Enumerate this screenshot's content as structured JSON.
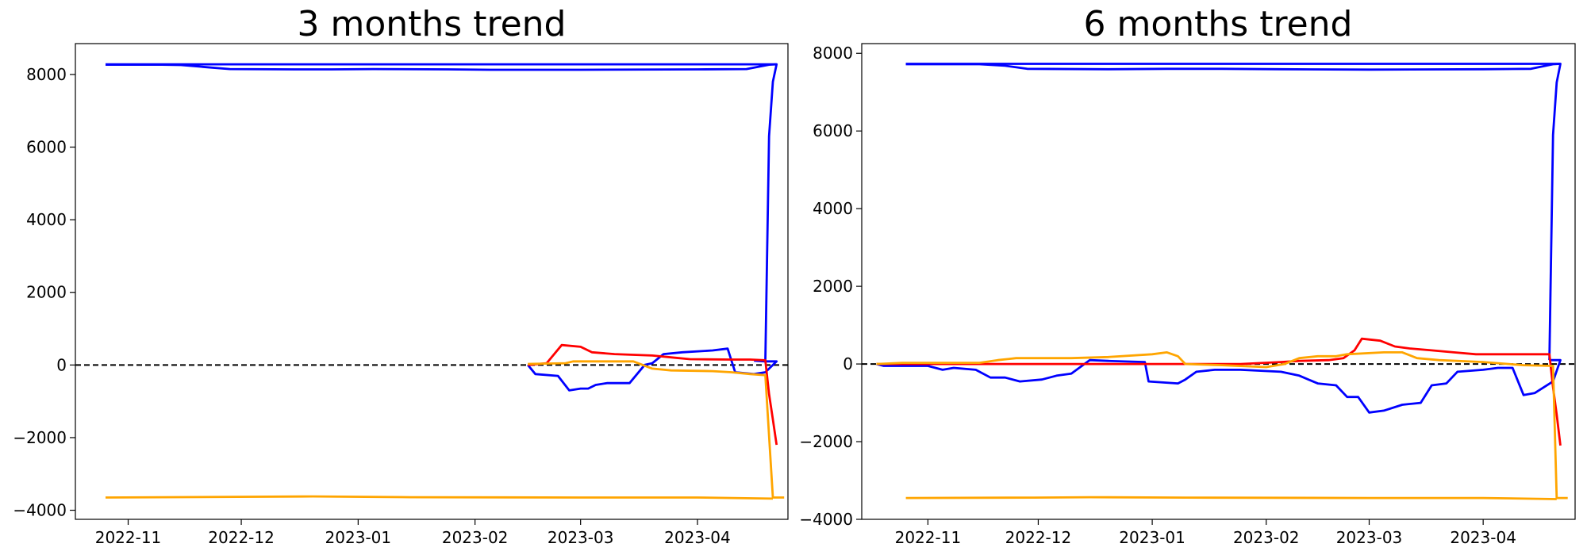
{
  "chart_data": [
    {
      "type": "line",
      "title": "3 months trend",
      "xlabel": "",
      "ylabel": "",
      "x_range": [
        "2022-10-18",
        "2023-04-25"
      ],
      "ylim": [
        -4250,
        8850
      ],
      "x_ticks": [
        "2022-11",
        "2022-12",
        "2023-01",
        "2023-02",
        "2023-03",
        "2023-04"
      ],
      "x_tick_dates": [
        "2022-11-01",
        "2022-12-01",
        "2023-01-01",
        "2023-02-01",
        "2023-03-01",
        "2023-04-01"
      ],
      "y_ticks": [
        -4000,
        -2000,
        0,
        2000,
        4000,
        6000,
        8000
      ],
      "y_tick_labels": [
        "−4000",
        "−2000",
        "0",
        "2000",
        "4000",
        "6000",
        "8000"
      ],
      "grid": false,
      "reference_line": {
        "y": 0,
        "style": "dashed",
        "color": "#000000"
      },
      "series": [
        {
          "color": "#0000ff",
          "points": [
            [
              "2022-10-26",
              8270
            ],
            [
              "2022-11-10",
              8270
            ],
            [
              "2022-11-15",
              8260
            ],
            [
              "2022-11-22",
              8200
            ],
            [
              "2022-11-28",
              8150
            ],
            [
              "2022-12-15",
              8140
            ],
            [
              "2022-12-25",
              8140
            ],
            [
              "2023-01-05",
              8150
            ],
            [
              "2023-01-25",
              8140
            ],
            [
              "2023-02-05",
              8130
            ],
            [
              "2023-03-01",
              8130
            ],
            [
              "2023-04-01",
              8140
            ],
            [
              "2023-04-14",
              8150
            ],
            [
              "2023-04-20",
              8270
            ],
            [
              "2023-04-22",
              8280
            ],
            [
              "2023-04-21",
              7800
            ],
            [
              "2023-04-20",
              6300
            ],
            [
              "2023-04-19",
              100
            ],
            [
              "2023-04-16",
              120
            ]
          ]
        },
        {
          "color": "#0000ff",
          "points": [
            [
              "2022-10-26",
              8280
            ],
            [
              "2023-04-22",
              8280
            ]
          ]
        },
        {
          "color": "#0000ff",
          "points": [
            [
              "2023-02-15",
              0
            ],
            [
              "2023-02-17",
              -250
            ],
            [
              "2023-02-23",
              -300
            ],
            [
              "2023-02-26",
              -700
            ],
            [
              "2023-03-01",
              -650
            ],
            [
              "2023-03-03",
              -650
            ],
            [
              "2023-03-05",
              -550
            ],
            [
              "2023-03-08",
              -500
            ],
            [
              "2023-03-14",
              -500
            ],
            [
              "2023-03-18",
              0
            ],
            [
              "2023-03-20",
              50
            ],
            [
              "2023-03-23",
              300
            ],
            [
              "2023-03-28",
              350
            ],
            [
              "2023-04-05",
              400
            ],
            [
              "2023-04-09",
              450
            ],
            [
              "2023-04-11",
              -200
            ],
            [
              "2023-04-16",
              -250
            ],
            [
              "2023-04-19",
              -200
            ],
            [
              "2023-04-22",
              100
            ],
            [
              "2023-04-19",
              100
            ]
          ]
        },
        {
          "color": "#ff0000",
          "points": [
            [
              "2023-02-15",
              0
            ],
            [
              "2023-02-20",
              50
            ],
            [
              "2023-02-24",
              550
            ],
            [
              "2023-03-01",
              500
            ],
            [
              "2023-03-04",
              350
            ],
            [
              "2023-03-10",
              300
            ],
            [
              "2023-03-15",
              280
            ],
            [
              "2023-03-20",
              260
            ],
            [
              "2023-03-26",
              200
            ],
            [
              "2023-03-30",
              160
            ],
            [
              "2023-04-10",
              150
            ],
            [
              "2023-04-15",
              150
            ],
            [
              "2023-04-19",
              130
            ],
            [
              "2023-04-20",
              -800
            ],
            [
              "2023-04-21",
              -1500
            ],
            [
              "2023-04-22",
              -2200
            ]
          ]
        },
        {
          "color": "#ffa500",
          "points": [
            [
              "2023-02-15",
              30
            ],
            [
              "2023-02-25",
              50
            ],
            [
              "2023-02-27",
              100
            ],
            [
              "2023-03-15",
              100
            ],
            [
              "2023-03-20",
              -100
            ],
            [
              "2023-03-25",
              -150
            ],
            [
              "2023-04-05",
              -170
            ],
            [
              "2023-04-10",
              -200
            ],
            [
              "2023-04-15",
              -250
            ],
            [
              "2023-04-19",
              -280
            ],
            [
              "2023-04-21",
              -3650
            ],
            [
              "2023-04-24",
              -3650
            ]
          ]
        },
        {
          "color": "#ffa500",
          "points": [
            [
              "2022-10-26",
              -3650
            ],
            [
              "2022-11-30",
              -3630
            ],
            [
              "2022-12-20",
              -3620
            ],
            [
              "2023-01-15",
              -3640
            ],
            [
              "2023-03-01",
              -3650
            ],
            [
              "2023-04-01",
              -3650
            ],
            [
              "2023-04-21",
              -3680
            ]
          ]
        }
      ]
    },
    {
      "type": "line",
      "title": "6 months trend",
      "xlabel": "",
      "ylabel": "",
      "x_range": [
        "2022-10-14",
        "2023-04-26"
      ],
      "ylim": [
        -4000,
        8250
      ],
      "x_ticks": [
        "2022-11",
        "2022-12",
        "2023-01",
        "2023-02",
        "2023-03",
        "2023-04"
      ],
      "x_tick_dates": [
        "2022-11-01",
        "2022-12-01",
        "2023-01-01",
        "2023-02-01",
        "2023-03-01",
        "2023-04-01"
      ],
      "y_ticks": [
        -4000,
        -2000,
        0,
        2000,
        4000,
        6000,
        8000
      ],
      "y_tick_labels": [
        "−4000",
        "−2000",
        "0",
        "2000",
        "4000",
        "6000",
        "8000"
      ],
      "grid": false,
      "reference_line": {
        "y": 0,
        "style": "dashed",
        "color": "#000000"
      },
      "series": [
        {
          "color": "#0000ff",
          "points": [
            [
              "2022-10-26",
              7720
            ],
            [
              "2022-11-15",
              7720
            ],
            [
              "2022-11-22",
              7680
            ],
            [
              "2022-11-28",
              7600
            ],
            [
              "2022-12-20",
              7590
            ],
            [
              "2023-01-05",
              7600
            ],
            [
              "2023-01-20",
              7600
            ],
            [
              "2023-02-05",
              7590
            ],
            [
              "2023-03-01",
              7580
            ],
            [
              "2023-04-01",
              7590
            ],
            [
              "2023-04-14",
              7600
            ],
            [
              "2023-04-20",
              7720
            ],
            [
              "2023-04-22",
              7730
            ],
            [
              "2023-04-21",
              7250
            ],
            [
              "2023-04-20",
              5900
            ],
            [
              "2023-04-19",
              100
            ]
          ]
        },
        {
          "color": "#0000ff",
          "points": [
            [
              "2022-10-26",
              7730
            ],
            [
              "2023-04-22",
              7730
            ]
          ]
        },
        {
          "color": "#0000ff",
          "points": [
            [
              "2022-10-18",
              0
            ],
            [
              "2022-10-20",
              -50
            ],
            [
              "2022-11-01",
              -50
            ],
            [
              "2022-11-05",
              -150
            ],
            [
              "2022-11-08",
              -100
            ],
            [
              "2022-11-14",
              -150
            ],
            [
              "2022-11-18",
              -350
            ],
            [
              "2022-11-22",
              -350
            ],
            [
              "2022-11-26",
              -450
            ],
            [
              "2022-12-02",
              -400
            ],
            [
              "2022-12-06",
              -300
            ],
            [
              "2022-12-10",
              -250
            ],
            [
              "2022-12-15",
              100
            ],
            [
              "2022-12-20",
              80
            ],
            [
              "2022-12-30",
              50
            ],
            [
              "2022-12-31",
              -450
            ],
            [
              "2023-01-08",
              -500
            ],
            [
              "2023-01-10",
              -400
            ],
            [
              "2023-01-13",
              -200
            ],
            [
              "2023-01-18",
              -150
            ],
            [
              "2023-01-25",
              -150
            ],
            [
              "2023-02-05",
              -200
            ],
            [
              "2023-02-10",
              -300
            ],
            [
              "2023-02-15",
              -500
            ],
            [
              "2023-02-20",
              -550
            ],
            [
              "2023-02-23",
              -850
            ],
            [
              "2023-02-26",
              -850
            ],
            [
              "2023-03-01",
              -1250
            ],
            [
              "2023-03-05",
              -1200
            ],
            [
              "2023-03-10",
              -1050
            ],
            [
              "2023-03-15",
              -1000
            ],
            [
              "2023-03-18",
              -550
            ],
            [
              "2023-03-22",
              -500
            ],
            [
              "2023-03-25",
              -200
            ],
            [
              "2023-04-01",
              -150
            ],
            [
              "2023-04-05",
              -100
            ],
            [
              "2023-04-09",
              -100
            ],
            [
              "2023-04-12",
              -800
            ],
            [
              "2023-04-15",
              -750
            ],
            [
              "2023-04-20",
              -450
            ],
            [
              "2023-04-22",
              100
            ],
            [
              "2023-04-19",
              100
            ]
          ]
        },
        {
          "color": "#ff0000",
          "points": [
            [
              "2022-10-18",
              0
            ],
            [
              "2023-01-25",
              0
            ],
            [
              "2023-02-05",
              50
            ],
            [
              "2023-02-10",
              80
            ],
            [
              "2023-02-18",
              100
            ],
            [
              "2023-02-22",
              150
            ],
            [
              "2023-02-25",
              350
            ],
            [
              "2023-02-27",
              650
            ],
            [
              "2023-03-04",
              600
            ],
            [
              "2023-03-08",
              450
            ],
            [
              "2023-03-12",
              400
            ],
            [
              "2023-03-18",
              350
            ],
            [
              "2023-03-24",
              300
            ],
            [
              "2023-03-30",
              250
            ],
            [
              "2023-04-10",
              250
            ],
            [
              "2023-04-19",
              250
            ],
            [
              "2023-04-20",
              -600
            ],
            [
              "2023-04-21",
              -1300
            ],
            [
              "2023-04-22",
              -2100
            ]
          ]
        },
        {
          "color": "#ffa500",
          "points": [
            [
              "2022-10-18",
              0
            ],
            [
              "2022-10-25",
              30
            ],
            [
              "2022-11-15",
              30
            ],
            [
              "2022-11-20",
              100
            ],
            [
              "2022-11-25",
              150
            ],
            [
              "2022-12-10",
              150
            ],
            [
              "2022-12-20",
              180
            ],
            [
              "2023-01-01",
              250
            ],
            [
              "2023-01-05",
              300
            ],
            [
              "2023-01-08",
              200
            ],
            [
              "2023-01-10",
              0
            ],
            [
              "2023-01-20",
              -30
            ],
            [
              "2023-02-01",
              -80
            ],
            [
              "2023-02-06",
              0
            ],
            [
              "2023-02-10",
              150
            ],
            [
              "2023-02-15",
              200
            ],
            [
              "2023-02-20",
              200
            ],
            [
              "2023-02-23",
              250
            ],
            [
              "2023-03-05",
              300
            ],
            [
              "2023-03-10",
              300
            ],
            [
              "2023-03-14",
              150
            ],
            [
              "2023-03-20",
              100
            ],
            [
              "2023-04-01",
              50
            ],
            [
              "2023-04-12",
              -30
            ],
            [
              "2023-04-20",
              -50
            ],
            [
              "2023-04-21",
              -3450
            ],
            [
              "2023-04-24",
              -3450
            ]
          ]
        },
        {
          "color": "#ffa500",
          "points": [
            [
              "2022-10-26",
              -3450
            ],
            [
              "2022-11-30",
              -3440
            ],
            [
              "2022-12-15",
              -3430
            ],
            [
              "2023-01-10",
              -3440
            ],
            [
              "2023-03-01",
              -3450
            ],
            [
              "2023-04-01",
              -3450
            ],
            [
              "2023-04-21",
              -3480
            ]
          ]
        }
      ]
    }
  ]
}
